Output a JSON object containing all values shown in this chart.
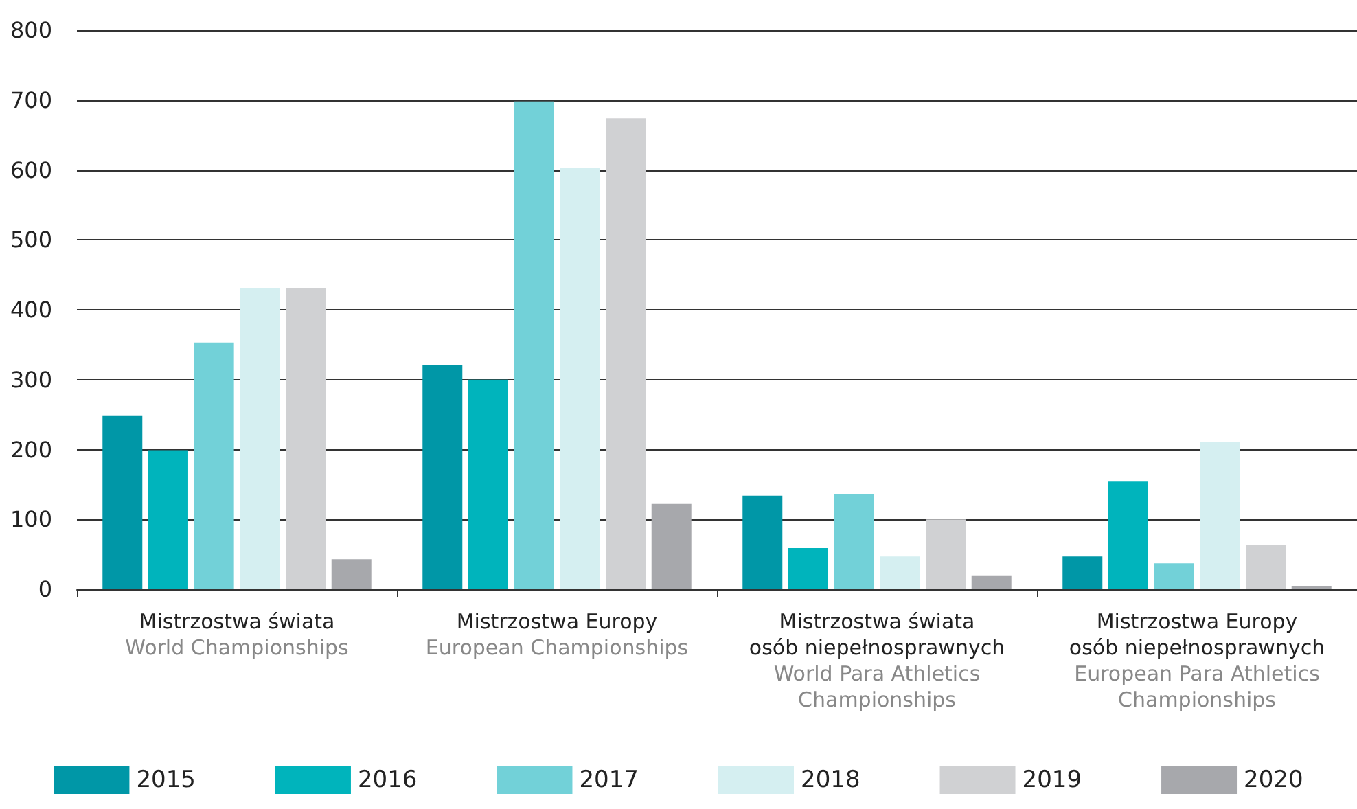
{
  "chart_data": {
    "type": "bar",
    "categories": [
      "Mistrzostwa świata\nWorld Championships",
      "Mistrzostwa Europy\nEuropean Championships",
      "Mistrzostwa świata\nosób niepełnosprawnych\nWorld Para Athletics\nChampionships",
      "Mistrzostwa Europy\nosób niepełnosprawnych\nEuropean Para Athletics\nChampionships"
    ],
    "series": [
      {
        "name": "2015",
        "color": "#0097a7",
        "values": [
          248,
          321,
          134,
          47
        ]
      },
      {
        "name": "2016",
        "color": "#00b4bc",
        "values": [
          199,
          300,
          59,
          154
        ]
      },
      {
        "name": "2017",
        "color": "#72d1d8",
        "values": [
          353,
          698,
          136,
          37
        ]
      },
      {
        "name": "2018",
        "color": "#d5eff1",
        "values": [
          431,
          603,
          47,
          211
        ]
      },
      {
        "name": "2019",
        "color": "#d0d1d3",
        "values": [
          431,
          674,
          100,
          63
        ]
      },
      {
        "name": "2020",
        "color": "#a7a8ac",
        "values": [
          43,
          122,
          20,
          4
        ]
      }
    ],
    "ylim": [
      0,
      800
    ],
    "yticks": [
      0,
      100,
      200,
      300,
      400,
      500,
      600,
      700,
      800
    ],
    "grid": "y",
    "legend": "bottom"
  }
}
